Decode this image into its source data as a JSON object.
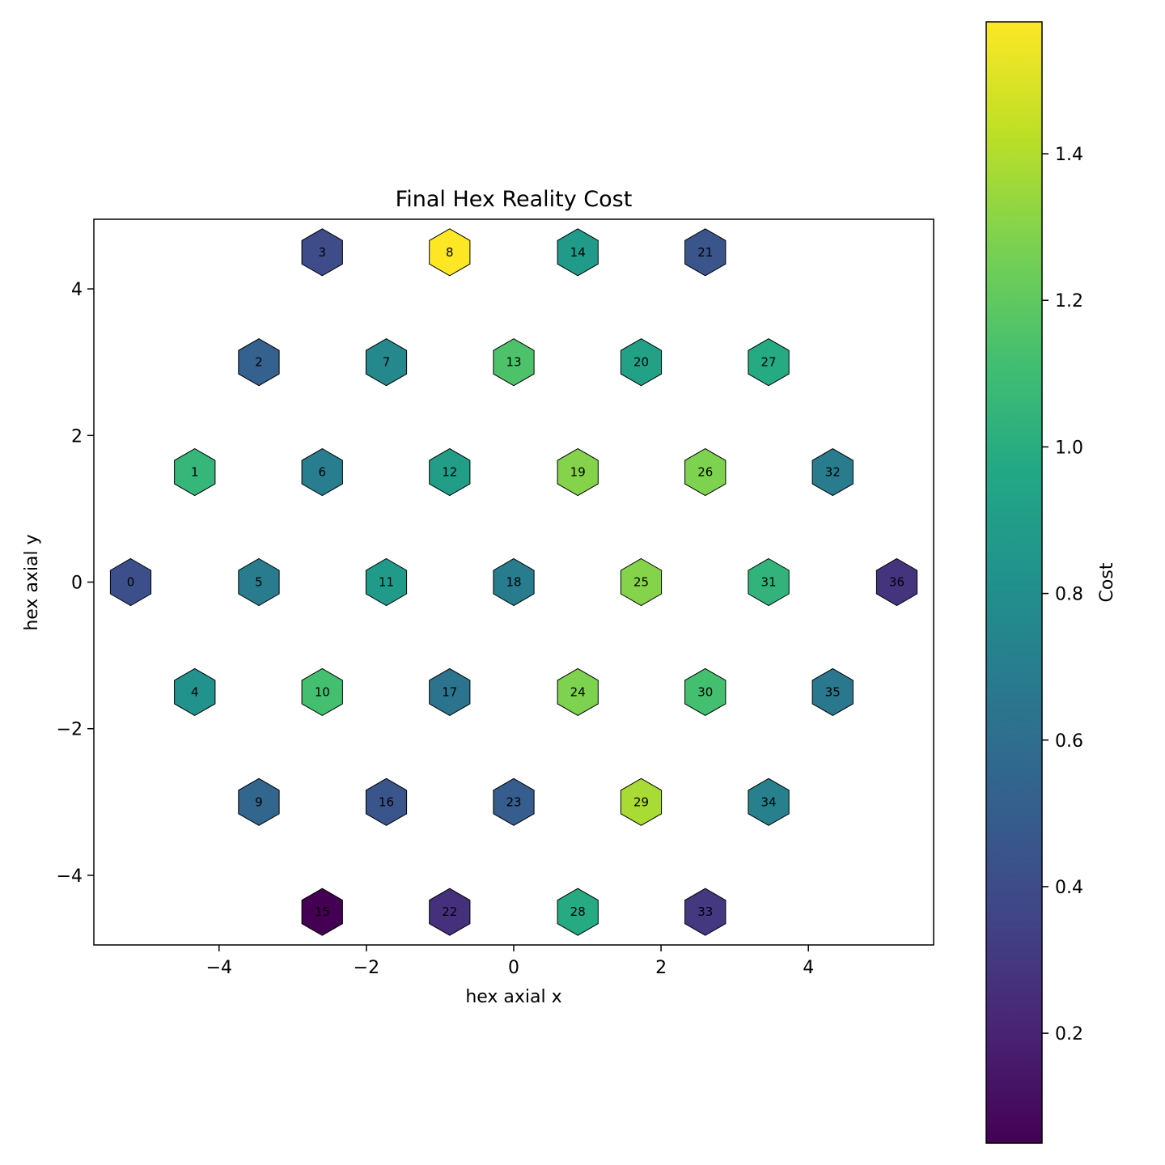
{
  "chart_data": {
    "type": "hexbin",
    "title": "Final Hex Reality Cost",
    "xlabel": "hex axial x",
    "ylabel": "hex axial y",
    "xlim": [
      -5.7,
      5.7
    ],
    "ylim": [
      -4.95,
      4.95
    ],
    "xticks": [
      -4,
      -2,
      0,
      2,
      4
    ],
    "yticks": [
      -4,
      -2,
      0,
      2,
      4
    ],
    "colormap": "viridis",
    "colorbar": {
      "label": "Cost",
      "vmin": 0.05,
      "vmax": 1.58,
      "ticks": [
        0.2,
        0.4,
        0.6,
        0.8,
        1.0,
        1.2,
        1.4
      ]
    },
    "points": [
      {
        "id": "0",
        "x": -5.2,
        "y": 0.0,
        "value": 0.42
      },
      {
        "id": "1",
        "x": -4.33,
        "y": 1.5,
        "value": 1.06
      },
      {
        "id": "2",
        "x": -3.46,
        "y": 3.0,
        "value": 0.52
      },
      {
        "id": "3",
        "x": -2.6,
        "y": 4.5,
        "value": 0.4
      },
      {
        "id": "4",
        "x": -4.33,
        "y": -1.5,
        "value": 0.82
      },
      {
        "id": "5",
        "x": -3.46,
        "y": 0.0,
        "value": 0.68
      },
      {
        "id": "6",
        "x": -2.6,
        "y": 1.5,
        "value": 0.7
      },
      {
        "id": "7",
        "x": -1.73,
        "y": 3.0,
        "value": 0.76
      },
      {
        "id": "8",
        "x": -0.87,
        "y": 4.5,
        "value": 1.58
      },
      {
        "id": "9",
        "x": -3.46,
        "y": -3.0,
        "value": 0.55
      },
      {
        "id": "10",
        "x": -2.6,
        "y": -1.5,
        "value": 1.12
      },
      {
        "id": "11",
        "x": -1.73,
        "y": 0.0,
        "value": 0.88
      },
      {
        "id": "12",
        "x": -0.87,
        "y": 1.5,
        "value": 0.9
      },
      {
        "id": "13",
        "x": 0.0,
        "y": 3.0,
        "value": 1.15
      },
      {
        "id": "14",
        "x": 0.87,
        "y": 4.5,
        "value": 0.88
      },
      {
        "id": "15",
        "x": -2.6,
        "y": -4.5,
        "value": 0.05
      },
      {
        "id": "16",
        "x": -1.73,
        "y": -3.0,
        "value": 0.45
      },
      {
        "id": "17",
        "x": -0.87,
        "y": -1.5,
        "value": 0.64
      },
      {
        "id": "18",
        "x": 0.0,
        "y": 0.0,
        "value": 0.68
      },
      {
        "id": "19",
        "x": 0.87,
        "y": 1.5,
        "value": 1.3
      },
      {
        "id": "20",
        "x": 1.73,
        "y": 3.0,
        "value": 0.92
      },
      {
        "id": "21",
        "x": 2.6,
        "y": 4.5,
        "value": 0.45
      },
      {
        "id": "22",
        "x": -0.87,
        "y": -4.5,
        "value": 0.26
      },
      {
        "id": "23",
        "x": 0.0,
        "y": -3.0,
        "value": 0.5
      },
      {
        "id": "24",
        "x": 0.87,
        "y": -1.5,
        "value": 1.28
      },
      {
        "id": "25",
        "x": 1.73,
        "y": 0.0,
        "value": 1.3
      },
      {
        "id": "26",
        "x": 2.6,
        "y": 1.5,
        "value": 1.28
      },
      {
        "id": "27",
        "x": 3.46,
        "y": 3.0,
        "value": 0.98
      },
      {
        "id": "28",
        "x": 0.87,
        "y": -4.5,
        "value": 0.98
      },
      {
        "id": "29",
        "x": 1.73,
        "y": -3.0,
        "value": 1.38
      },
      {
        "id": "30",
        "x": 2.6,
        "y": -1.5,
        "value": 1.12
      },
      {
        "id": "31",
        "x": 3.46,
        "y": 0.0,
        "value": 1.04
      },
      {
        "id": "32",
        "x": 4.33,
        "y": 1.5,
        "value": 0.68
      },
      {
        "id": "33",
        "x": 2.6,
        "y": -4.5,
        "value": 0.3
      },
      {
        "id": "34",
        "x": 3.46,
        "y": -3.0,
        "value": 0.72
      },
      {
        "id": "35",
        "x": 4.33,
        "y": -1.5,
        "value": 0.66
      },
      {
        "id": "36",
        "x": 5.2,
        "y": 0.0,
        "value": 0.28
      }
    ]
  }
}
